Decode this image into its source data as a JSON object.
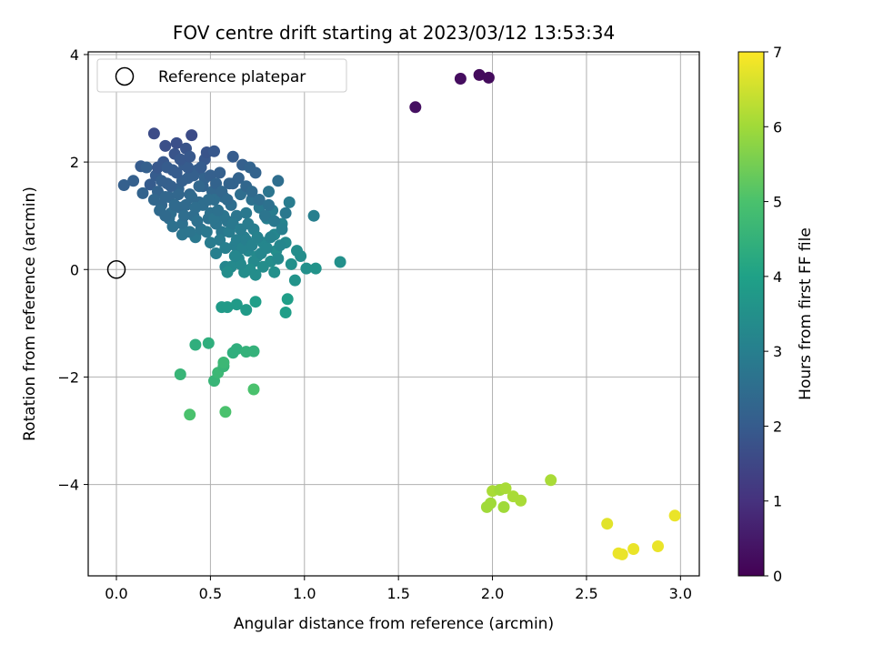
{
  "chart_data": {
    "type": "scatter",
    "title": "FOV centre drift starting at 2023/03/12 13:53:34",
    "xlabel": "Angular distance from reference (arcmin)",
    "ylabel": "Rotation from reference (arcmin)",
    "xlim": [
      -0.15,
      3.1
    ],
    "ylim": [
      -5.7,
      4.05
    ],
    "x_ticks": [
      0.0,
      0.5,
      1.0,
      1.5,
      2.0,
      2.5,
      3.0
    ],
    "x_tick_labels": [
      "0.0",
      "0.5",
      "1.0",
      "1.5",
      "2.0",
      "2.5",
      "3.0"
    ],
    "y_ticks": [
      -4,
      -2,
      0,
      2,
      4
    ],
    "y_tick_labels": [
      "−4",
      "−2",
      "0",
      "2",
      "4"
    ],
    "grid": true,
    "legend": {
      "position": "top-left",
      "entries": [
        {
          "label": "Reference platepar",
          "marker": "open-circle"
        }
      ]
    },
    "reference_point": {
      "x": 0.0,
      "y": 0.0
    },
    "colorbar": {
      "label": "Hours from first FF file",
      "range": [
        0,
        7
      ],
      "ticks": [
        0,
        1,
        2,
        3,
        4,
        5,
        6,
        7
      ],
      "tick_labels": [
        "0",
        "1",
        "2",
        "3",
        "4",
        "5",
        "6",
        "7"
      ],
      "colormap": "viridis"
    },
    "points": [
      [
        1.59,
        3.02,
        0.3
      ],
      [
        1.83,
        3.55,
        0.25
      ],
      [
        1.93,
        3.62,
        0.2
      ],
      [
        1.98,
        3.57,
        0.2
      ],
      [
        0.04,
        1.57,
        2.1
      ],
      [
        0.09,
        1.65,
        2.1
      ],
      [
        0.13,
        1.92,
        2.0
      ],
      [
        0.16,
        1.9,
        2.1
      ],
      [
        0.14,
        1.42,
        2.2
      ],
      [
        0.18,
        1.58,
        2.0
      ],
      [
        0.2,
        2.53,
        1.6
      ],
      [
        0.21,
        1.75,
        2.0
      ],
      [
        0.22,
        1.45,
        2.2
      ],
      [
        0.24,
        1.2,
        2.3
      ],
      [
        0.25,
        2.0,
        1.9
      ],
      [
        0.26,
        2.3,
        1.7
      ],
      [
        0.27,
        1.6,
        2.1
      ],
      [
        0.28,
        1.35,
        2.3
      ],
      [
        0.29,
        1.05,
        2.5
      ],
      [
        0.3,
        1.85,
        2.0
      ],
      [
        0.31,
        2.15,
        1.8
      ],
      [
        0.32,
        2.35,
        1.7
      ],
      [
        0.33,
        1.5,
        2.2
      ],
      [
        0.34,
        1.15,
        2.4
      ],
      [
        0.35,
        0.85,
        2.6
      ],
      [
        0.36,
        1.95,
        2.0
      ],
      [
        0.37,
        2.25,
        1.8
      ],
      [
        0.38,
        1.7,
        2.1
      ],
      [
        0.39,
        1.4,
        2.3
      ],
      [
        0.4,
        2.5,
        1.6
      ],
      [
        0.41,
        1.0,
        2.5
      ],
      [
        0.42,
        0.6,
        2.8
      ],
      [
        0.43,
        1.85,
        2.1
      ],
      [
        0.44,
        1.25,
        2.4
      ],
      [
        0.45,
        0.75,
        2.7
      ],
      [
        0.46,
        1.55,
        2.2
      ],
      [
        0.47,
        2.05,
        1.9
      ],
      [
        0.48,
        2.18,
        1.8
      ],
      [
        0.49,
        0.95,
        2.6
      ],
      [
        0.5,
        0.5,
        2.9
      ],
      [
        0.51,
        1.45,
        2.3
      ],
      [
        0.52,
        2.2,
        1.9
      ],
      [
        0.53,
        0.3,
        3.0
      ],
      [
        0.54,
        1.1,
        2.5
      ],
      [
        0.55,
        1.8,
        2.1
      ],
      [
        0.56,
        0.7,
        2.8
      ],
      [
        0.57,
        1.35,
        2.4
      ],
      [
        0.58,
        0.05,
        3.2
      ],
      [
        0.59,
        0.9,
        2.7
      ],
      [
        0.6,
        1.6,
        2.2
      ],
      [
        0.61,
        1.2,
        2.5
      ],
      [
        0.62,
        2.1,
        2.0
      ],
      [
        0.63,
        0.45,
        3.0
      ],
      [
        0.64,
        1.0,
        2.7
      ],
      [
        0.65,
        0.2,
        3.2
      ],
      [
        0.66,
        1.4,
        2.5
      ],
      [
        0.67,
        1.95,
        2.1
      ],
      [
        0.68,
        0.6,
        3.0
      ],
      [
        0.69,
        1.05,
        2.8
      ],
      [
        0.7,
        0.35,
        3.2
      ],
      [
        0.71,
        1.9,
        2.2
      ],
      [
        0.72,
        1.3,
        2.6
      ],
      [
        0.73,
        0.75,
        3.0
      ],
      [
        0.74,
        1.8,
        2.2
      ],
      [
        0.75,
        0.25,
        3.3
      ],
      [
        0.76,
        1.15,
        2.8
      ],
      [
        0.78,
        0.5,
        3.2
      ],
      [
        0.8,
        0.95,
        3.0
      ],
      [
        0.81,
        1.45,
        2.7
      ],
      [
        0.82,
        0.15,
        3.4
      ],
      [
        0.83,
        1.1,
        2.9
      ],
      [
        0.84,
        0.65,
        3.2
      ],
      [
        0.85,
        0.35,
        3.4
      ],
      [
        0.86,
        1.65,
        2.5
      ],
      [
        0.88,
        0.85,
        3.1
      ],
      [
        0.9,
        0.5,
        3.3
      ],
      [
        0.92,
        1.25,
        2.9
      ],
      [
        0.93,
        0.1,
        3.5
      ],
      [
        0.95,
        -0.2,
        3.6
      ],
      [
        0.96,
        0.35,
        3.4
      ],
      [
        0.98,
        0.25,
        3.4
      ],
      [
        1.01,
        0.02,
        3.5
      ],
      [
        1.05,
        1.0,
        3.0
      ],
      [
        1.06,
        0.02,
        3.6
      ],
      [
        1.19,
        0.14,
        3.5
      ],
      [
        0.2,
        1.3,
        2.3
      ],
      [
        0.23,
        1.1,
        2.4
      ],
      [
        0.28,
        0.95,
        2.5
      ],
      [
        0.3,
        0.8,
        2.6
      ],
      [
        0.33,
        1.4,
        2.3
      ],
      [
        0.35,
        0.65,
        2.7
      ],
      [
        0.37,
        1.2,
        2.4
      ],
      [
        0.4,
        1.35,
        2.4
      ],
      [
        0.43,
        0.9,
        2.6
      ],
      [
        0.46,
        1.2,
        2.5
      ],
      [
        0.48,
        0.7,
        2.8
      ],
      [
        0.5,
        1.05,
        2.6
      ],
      [
        0.52,
        1.3,
        2.5
      ],
      [
        0.53,
        0.85,
        2.7
      ],
      [
        0.55,
        0.55,
        2.9
      ],
      [
        0.57,
        1.0,
        2.7
      ],
      [
        0.58,
        0.4,
        3.0
      ],
      [
        0.6,
        0.7,
        2.9
      ],
      [
        0.62,
        0.85,
        2.8
      ],
      [
        0.64,
        0.55,
        3.0
      ],
      [
        0.66,
        0.75,
        2.9
      ],
      [
        0.67,
        0.4,
        3.1
      ],
      [
        0.69,
        0.55,
        3.0
      ],
      [
        0.7,
        0.85,
        2.9
      ],
      [
        0.72,
        0.45,
        3.1
      ],
      [
        0.73,
        0.15,
        3.3
      ],
      [
        0.75,
        0.6,
        3.1
      ],
      [
        0.77,
        0.3,
        3.2
      ],
      [
        0.78,
        0.05,
        3.4
      ],
      [
        0.8,
        0.4,
        3.2
      ],
      [
        0.82,
        0.6,
        3.1
      ],
      [
        0.84,
        -0.05,
        3.5
      ],
      [
        0.86,
        0.2,
        3.3
      ],
      [
        0.87,
        0.45,
        3.2
      ],
      [
        0.74,
        -0.1,
        3.4
      ],
      [
        0.71,
        0.0,
        3.4
      ],
      [
        0.68,
        -0.05,
        3.4
      ],
      [
        0.66,
        0.1,
        3.3
      ],
      [
        0.63,
        0.25,
        3.2
      ],
      [
        0.61,
        0.05,
        3.3
      ],
      [
        0.59,
        -0.05,
        3.4
      ],
      [
        0.47,
        1.7,
        2.2
      ],
      [
        0.44,
        1.55,
        2.3
      ],
      [
        0.41,
        1.75,
        2.1
      ],
      [
        0.38,
        1.9,
        2.0
      ],
      [
        0.35,
        1.65,
        2.1
      ],
      [
        0.32,
        1.8,
        2.0
      ],
      [
        0.29,
        1.55,
        2.1
      ],
      [
        0.26,
        1.35,
        2.3
      ],
      [
        0.24,
        1.65,
        2.1
      ],
      [
        0.22,
        1.9,
        1.9
      ],
      [
        0.27,
        1.9,
        2.0
      ],
      [
        0.34,
        2.05,
        1.9
      ],
      [
        0.39,
        2.1,
        1.9
      ],
      [
        0.45,
        1.9,
        2.0
      ],
      [
        0.5,
        1.75,
        2.1
      ],
      [
        0.53,
        1.6,
        2.2
      ],
      [
        0.56,
        1.45,
        2.3
      ],
      [
        0.59,
        1.3,
        2.4
      ],
      [
        0.62,
        1.6,
        2.2
      ],
      [
        0.65,
        1.7,
        2.2
      ],
      [
        0.69,
        1.55,
        2.3
      ],
      [
        0.72,
        1.45,
        2.4
      ],
      [
        0.76,
        1.3,
        2.5
      ],
      [
        0.79,
        1.0,
        2.7
      ],
      [
        0.81,
        1.2,
        2.6
      ],
      [
        0.84,
        0.9,
        2.8
      ],
      [
        0.88,
        0.75,
        3.0
      ],
      [
        0.9,
        1.05,
        2.8
      ],
      [
        0.52,
        0.95,
        2.7
      ],
      [
        0.49,
        1.3,
        2.5
      ],
      [
        0.54,
        1.1,
        2.6
      ],
      [
        0.42,
        1.15,
        2.5
      ],
      [
        0.39,
        0.7,
        2.7
      ],
      [
        0.36,
        1.0,
        2.5
      ],
      [
        0.31,
        1.2,
        2.4
      ],
      [
        0.26,
        1.0,
        2.4
      ],
      [
        0.56,
        -0.7,
        3.8
      ],
      [
        0.59,
        -0.7,
        3.8
      ],
      [
        0.64,
        -0.65,
        3.8
      ],
      [
        0.69,
        -0.75,
        3.8
      ],
      [
        0.74,
        -0.6,
        3.9
      ],
      [
        0.9,
        -0.8,
        3.9
      ],
      [
        0.91,
        -0.55,
        3.9
      ],
      [
        0.42,
        -1.4,
        4.4
      ],
      [
        0.49,
        -1.37,
        4.4
      ],
      [
        0.62,
        -1.55,
        4.4
      ],
      [
        0.64,
        -1.48,
        4.4
      ],
      [
        0.69,
        -1.53,
        4.5
      ],
      [
        0.73,
        -1.52,
        4.5
      ],
      [
        0.34,
        -1.95,
        4.6
      ],
      [
        0.52,
        -2.07,
        4.6
      ],
      [
        0.54,
        -1.92,
        4.7
      ],
      [
        0.57,
        -1.8,
        4.6
      ],
      [
        0.57,
        -1.73,
        4.7
      ],
      [
        0.39,
        -2.7,
        5.0
      ],
      [
        0.58,
        -2.65,
        5.0
      ],
      [
        0.73,
        -2.23,
        5.0
      ],
      [
        1.97,
        -4.42,
        6.0
      ],
      [
        1.99,
        -4.35,
        6.0
      ],
      [
        2.0,
        -4.12,
        6.1
      ],
      [
        2.04,
        -4.1,
        6.0
      ],
      [
        2.06,
        -4.42,
        6.0
      ],
      [
        2.07,
        -4.07,
        6.1
      ],
      [
        2.11,
        -4.22,
        6.1
      ],
      [
        2.15,
        -4.3,
        6.1
      ],
      [
        2.31,
        -3.92,
        6.1
      ],
      [
        2.61,
        -4.73,
        6.7
      ],
      [
        2.67,
        -5.28,
        6.8
      ],
      [
        2.69,
        -5.3,
        6.8
      ],
      [
        2.75,
        -5.2,
        6.8
      ],
      [
        2.88,
        -5.15,
        6.8
      ],
      [
        2.97,
        -4.58,
        6.8
      ]
    ]
  }
}
